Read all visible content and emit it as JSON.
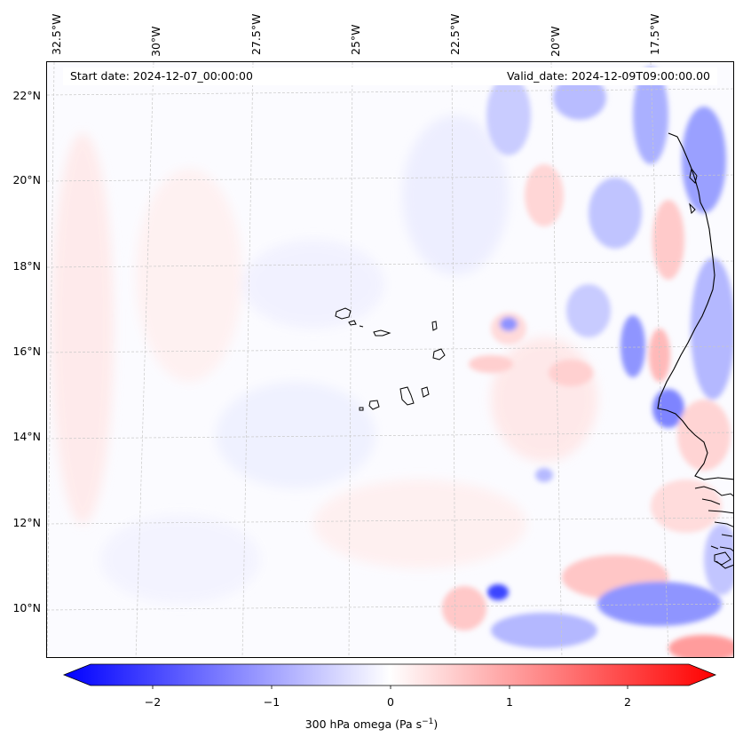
{
  "map": {
    "start_date": "Start date: 2024-12-07_00:00:00",
    "valid_date": "Valid_date: 2024-12-09T09:00:00.00",
    "lon_labels": [
      "32.5°W",
      "30°W",
      "27.5°W",
      "25°W",
      "22.5°W",
      "20°W",
      "17.5°W"
    ],
    "lat_labels": [
      "22°N",
      "20°N",
      "18°N",
      "16°N",
      "14°N",
      "12°N",
      "10°N"
    ],
    "features": [
      "cape-verde-islands",
      "west-africa-coastline"
    ]
  },
  "colorbar": {
    "ticks": [
      "−2",
      "−1",
      "0",
      "1",
      "2"
    ],
    "label_main": "300 hPa omega (Pa s",
    "label_exp": "−1",
    "label_close": ")",
    "range": [
      -2.6,
      2.6
    ],
    "colormap": "bwr",
    "color_min": "#0000ff",
    "color_mid": "#ffffff",
    "color_max": "#ff0000"
  }
}
